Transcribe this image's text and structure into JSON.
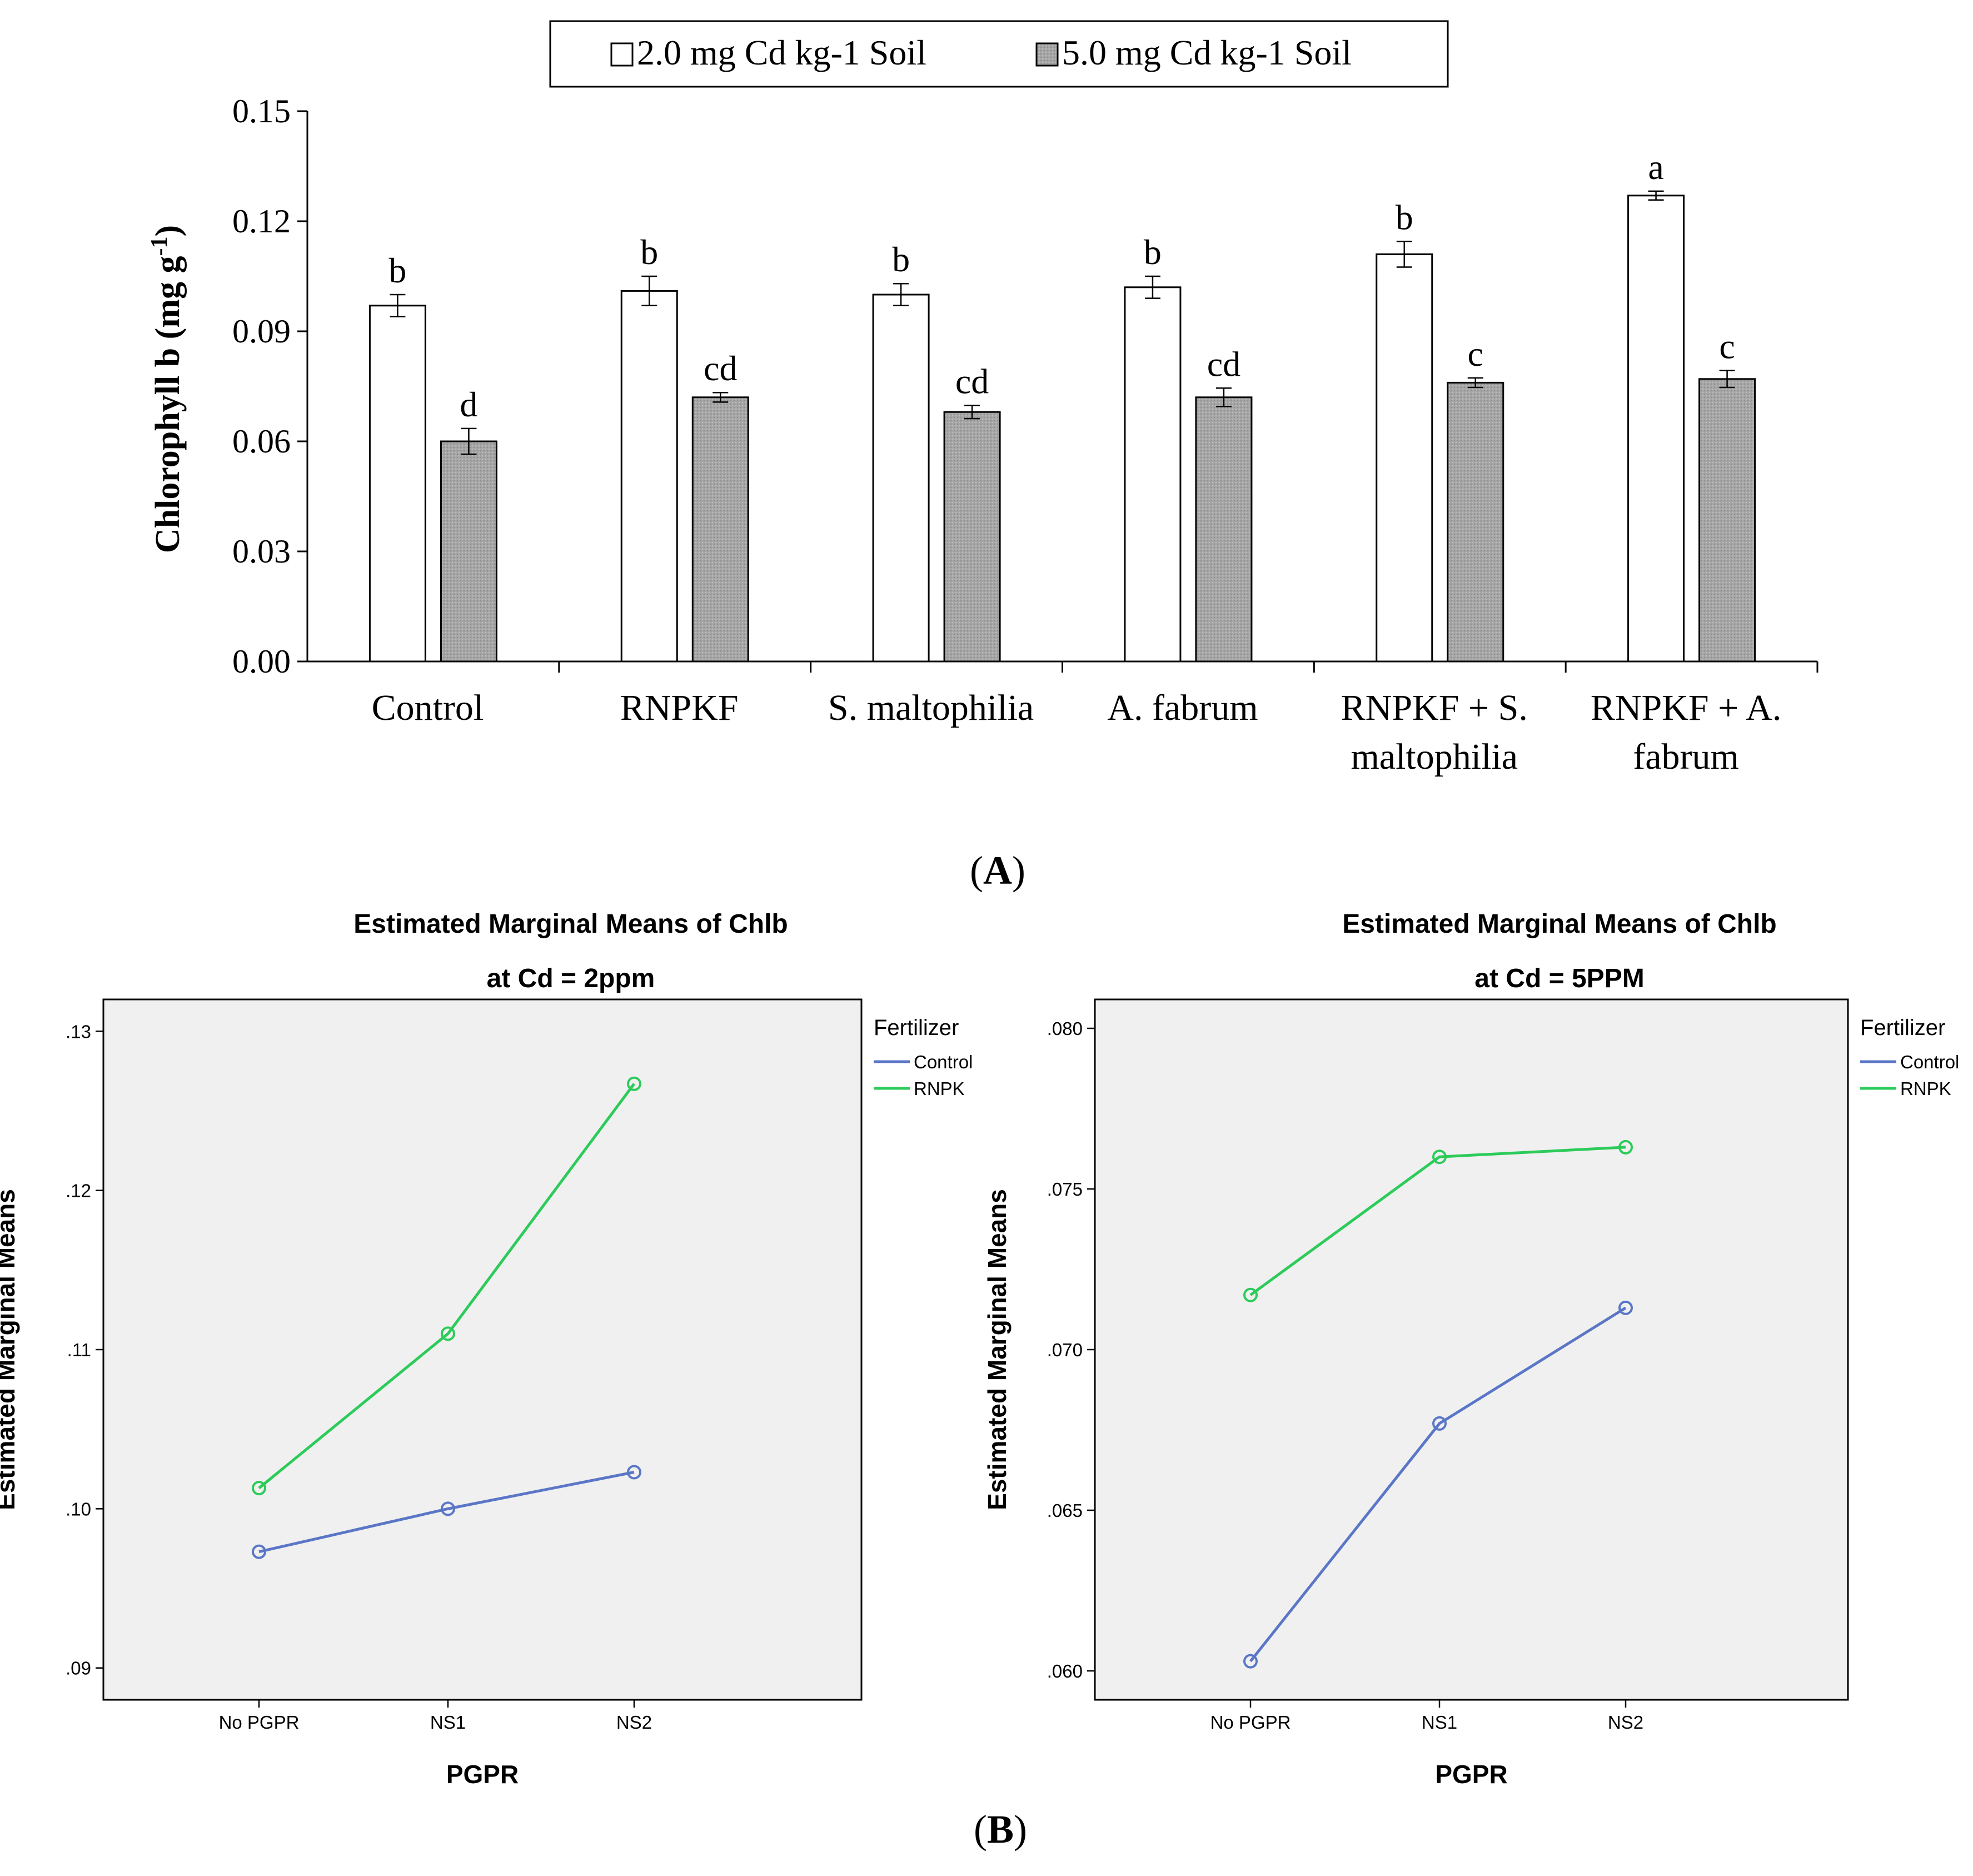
{
  "chart_data": [
    {
      "type": "bar",
      "panel_label": "A",
      "panel_label_left": "(",
      "panel_label_right": ")",
      "ylabel": "Chlorophyll b (mg g",
      "ylabel_superscript": "-1",
      "ylabel_suffix": ")",
      "ylim": [
        0,
        0.15
      ],
      "yticks": [
        "0.00",
        "0.03",
        "0.06",
        "0.09",
        "0.12",
        "0.15"
      ],
      "ytick_values": [
        0,
        0.03,
        0.06,
        0.09,
        0.12,
        0.15
      ],
      "categories": [
        [
          "Control"
        ],
        [
          "RNPKF"
        ],
        [
          "S. maltophilia"
        ],
        [
          "A. fabrum"
        ],
        [
          "RNPKF + S.",
          "maltophilia"
        ],
        [
          "RNPKF + A.",
          "fabrum"
        ]
      ],
      "legend": {
        "position": "top-center",
        "entries": [
          "2.0 mg Cd kg-1  Soil",
          "5.0 mg Cd kg-1  Soil"
        ]
      },
      "series": [
        {
          "name": "2.0 mg Cd kg-1  Soil",
          "color": "#ffffff",
          "values": [
            0.097,
            0.101,
            0.1,
            0.102,
            0.111,
            0.127
          ],
          "errors": [
            0.003,
            0.004,
            0.003,
            0.003,
            0.0035,
            0.0012
          ],
          "labels": [
            "b",
            "b",
            "b",
            "b",
            "b",
            "a"
          ]
        },
        {
          "name": "5.0 mg Cd kg-1  Soil",
          "color": "#a6a6a6",
          "values": [
            0.06,
            0.072,
            0.068,
            0.072,
            0.076,
            0.077
          ],
          "errors": [
            0.0035,
            0.0013,
            0.0018,
            0.0025,
            0.0013,
            0.0023
          ],
          "labels": [
            "d",
            "cd",
            "cd",
            "cd",
            "c",
            "c"
          ]
        }
      ]
    },
    {
      "type": "line",
      "title": [
        "Estimated Marginal Means of Chlb",
        "at Cd = 2ppm"
      ],
      "xlabel": "PGPR",
      "ylabel": "Estimated Marginal Means",
      "categories": [
        "No PGPR",
        "NS1",
        "NS2"
      ],
      "ylim": [
        0.088,
        0.132
      ],
      "yticks": [
        ".09",
        ".10",
        ".11",
        ".12",
        ".13"
      ],
      "ytick_values": [
        0.09,
        0.1,
        0.11,
        0.12,
        0.13
      ],
      "legend": {
        "title": "Fertilizer",
        "position": "right"
      },
      "series": [
        {
          "name": "Control",
          "color": "#5a76c7",
          "values": [
            0.0973,
            0.1,
            0.1023
          ]
        },
        {
          "name": "RNPK",
          "color": "#2ccb5a",
          "values": [
            0.1013,
            0.111,
            0.1267
          ]
        }
      ]
    },
    {
      "type": "line",
      "title": [
        "Estimated Marginal Means of Chlb",
        "at Cd = 5PPM"
      ],
      "xlabel": "PGPR",
      "ylabel": "Estimated Marginal Means",
      "categories": [
        "No PGPR",
        "NS1",
        "NS2"
      ],
      "ylim": [
        0.0591,
        0.0809
      ],
      "yticks": [
        ".060",
        ".065",
        ".070",
        ".075",
        ".080"
      ],
      "ytick_values": [
        0.06,
        0.065,
        0.07,
        0.075,
        0.08
      ],
      "legend": {
        "title": "Fertilizer",
        "position": "right"
      },
      "series": [
        {
          "name": "Control",
          "color": "#5a76c7",
          "values": [
            0.0603,
            0.0677,
            0.0713
          ]
        },
        {
          "name": "RNPK",
          "color": "#2ccb5a",
          "values": [
            0.0717,
            0.076,
            0.0763
          ]
        }
      ]
    }
  ],
  "panel_b": {
    "left": "(",
    "label": "B",
    "right": ")"
  }
}
